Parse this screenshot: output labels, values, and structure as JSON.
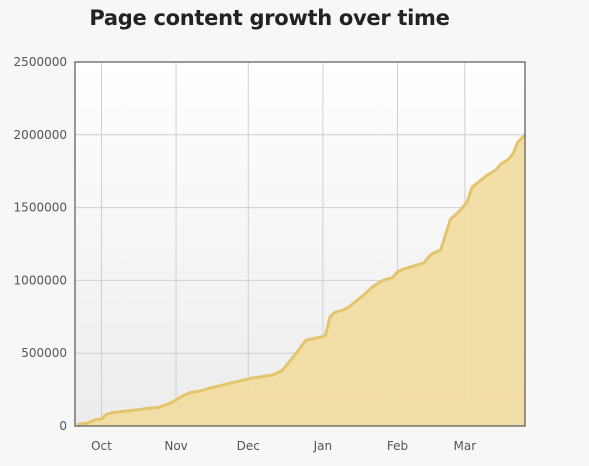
{
  "chart_data": {
    "type": "area",
    "title": "Page content growth over time",
    "xlabel": "",
    "ylabel": "",
    "ylim": [
      0,
      2500000
    ],
    "y_ticks": [
      "0",
      "500000",
      "1000000",
      "1500000",
      "2000000",
      "2500000"
    ],
    "y_tick_values": [
      0,
      500000,
      1000000,
      1500000,
      2000000,
      2500000
    ],
    "x_ticks": [
      "Oct",
      "Nov",
      "Dec",
      "Jan",
      "Feb",
      "Mar"
    ],
    "grid": true,
    "legend": "none",
    "colors": {
      "fill": "#f1dca2",
      "line": "#e3c56e",
      "grid": "#cfcfcf",
      "frame": "#555555"
    },
    "series": [
      {
        "x": [
          "Sep 21",
          "Sep 25",
          "Sep 28",
          "Oct 1",
          "Oct 3",
          "Oct 5",
          "Oct 10",
          "Oct 15",
          "Oct 20",
          "Oct 25",
          "Oct 30",
          "Nov 3",
          "Nov 7",
          "Nov 11",
          "Nov 15",
          "Nov 20",
          "Nov 25",
          "Nov 30",
          "Dec 3",
          "Dec 7",
          "Dec 11",
          "Dec 15",
          "Dec 20",
          "Dec 25",
          "Dec 28",
          "Dec 31",
          "Jan 2",
          "Jan 4",
          "Jan 6",
          "Jan 10",
          "Jan 12",
          "Jan 15",
          "Jan 18",
          "Jan 22",
          "Jan 26",
          "Jan 30",
          "Feb 1",
          "Feb 4",
          "Feb 8",
          "Feb 12",
          "Feb 15",
          "Feb 19",
          "Feb 23",
          "Feb 27",
          "Mar 2",
          "Mar 4",
          "Mar 7",
          "Mar 10",
          "Mar 14",
          "Mar 16",
          "Mar 19",
          "Mar 21",
          "Mar 23",
          "Mar 26"
        ],
        "y": [
          10000,
          20000,
          40000,
          50000,
          80000,
          90000,
          100000,
          110000,
          120000,
          130000,
          160000,
          200000,
          230000,
          240000,
          260000,
          280000,
          300000,
          320000,
          330000,
          340000,
          350000,
          380000,
          480000,
          590000,
          600000,
          610000,
          620000,
          750000,
          780000,
          800000,
          820000,
          860000,
          900000,
          960000,
          1000000,
          1020000,
          1060000,
          1080000,
          1100000,
          1120000,
          1180000,
          1210000,
          1420000,
          1480000,
          1540000,
          1640000,
          1680000,
          1720000,
          1760000,
          1800000,
          1830000,
          1870000,
          1950000,
          2000000
        ]
      }
    ]
  }
}
